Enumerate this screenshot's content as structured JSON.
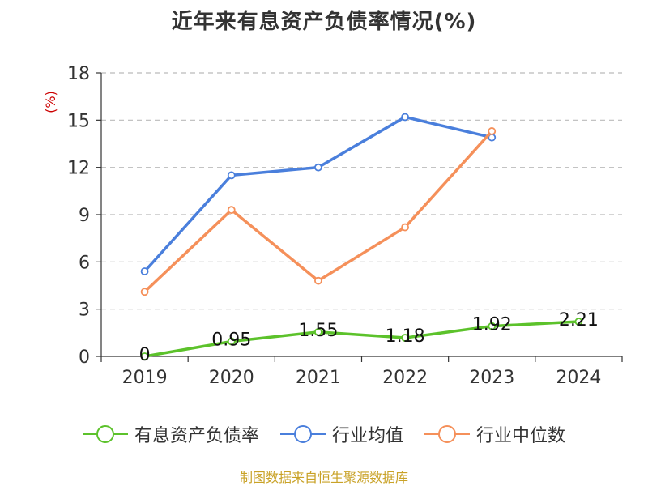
{
  "chart_data": {
    "type": "line",
    "title": "近年来有息资产负债率情况(%)",
    "ylabel": "(%)",
    "categories": [
      "2019",
      "2020",
      "2021",
      "2022",
      "2023",
      "2024"
    ],
    "ylim": [
      0,
      18
    ],
    "yticks": [
      0,
      3,
      6,
      9,
      12,
      15,
      18
    ],
    "grid": true,
    "legend_position": "bottom",
    "series": [
      {
        "name": "有息资产负债率",
        "color": "#5cc22b",
        "values": [
          0,
          0.95,
          1.55,
          1.18,
          1.92,
          2.21
        ],
        "labels": [
          "0",
          "0.95",
          "1.55",
          "1.18",
          "1.92",
          "2.21"
        ]
      },
      {
        "name": "行业均值",
        "color": "#4a7fdc",
        "values": [
          5.4,
          11.5,
          12.0,
          15.2,
          13.9,
          null
        ]
      },
      {
        "name": "行业中位数",
        "color": "#f5905a",
        "values": [
          4.1,
          9.3,
          4.8,
          8.2,
          14.3,
          null
        ]
      }
    ]
  },
  "source": "制图数据来自恒生聚源数据库"
}
